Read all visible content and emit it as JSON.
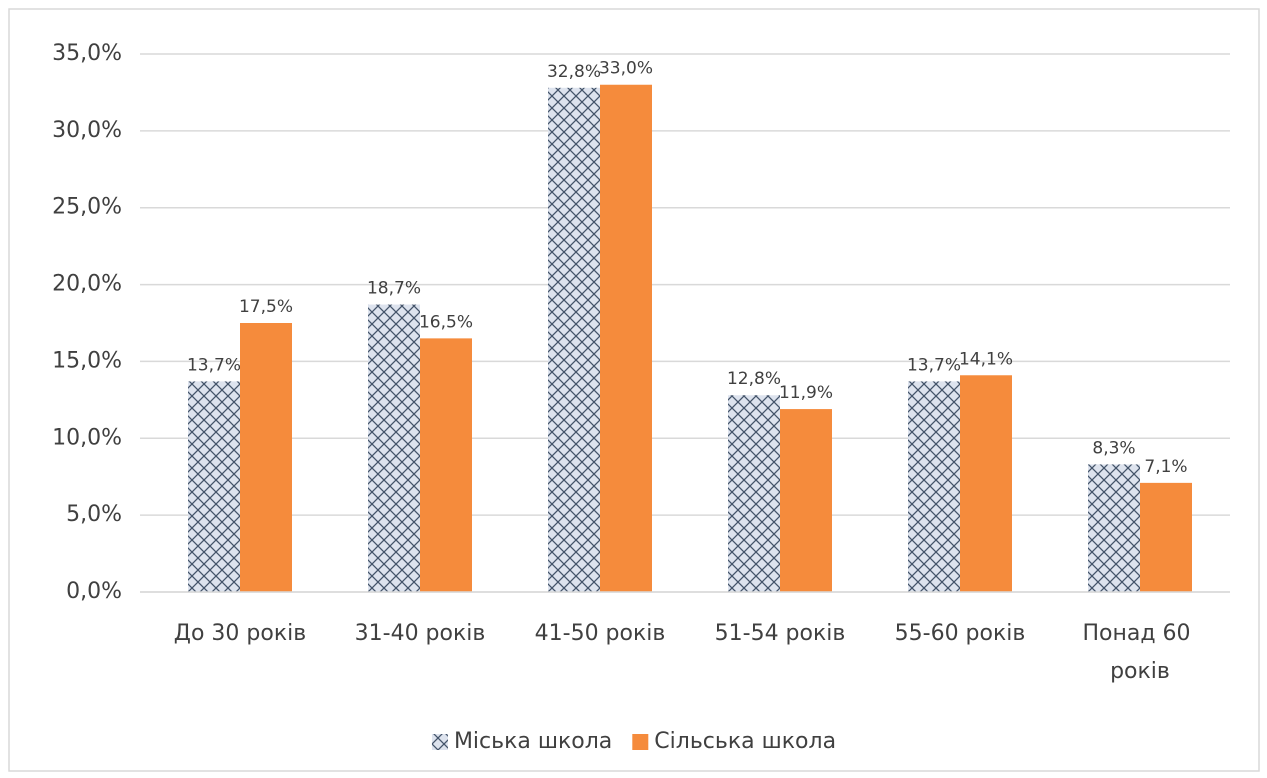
{
  "chart_data": {
    "type": "bar",
    "categories": [
      "До 30 років",
      "31-40 років",
      "41-50 років",
      "51-54 років",
      "55-60 років",
      "Понад 60 років"
    ],
    "series": [
      {
        "name": "Міська школа",
        "color": "#8497b0",
        "pattern": "crosshatch",
        "values": [
          13.7,
          18.7,
          32.8,
          12.8,
          13.7,
          8.3
        ],
        "value_labels": [
          "13,7%",
          "18,7%",
          "32,8%",
          "12,8%",
          "13,7%",
          "8,3%"
        ]
      },
      {
        "name": "Сільська школа",
        "color": "#f58b3c",
        "values": [
          17.5,
          16.5,
          33.0,
          11.9,
          14.1,
          7.1
        ],
        "value_labels": [
          "17,5%",
          "16,5%",
          "33,0%",
          "11,9%",
          "14,1%",
          "7,1%"
        ]
      }
    ],
    "ylim": [
      0,
      35
    ],
    "yticks": [
      {
        "value": 0,
        "label": "0,0%"
      },
      {
        "value": 5,
        "label": "5,0%"
      },
      {
        "value": 10,
        "label": "10,0%"
      },
      {
        "value": 15,
        "label": "15,0%"
      },
      {
        "value": 20,
        "label": "20,0%"
      },
      {
        "value": 25,
        "label": "25,0%"
      },
      {
        "value": 30,
        "label": "30,0%"
      },
      {
        "value": 35,
        "label": "35,0%"
      }
    ],
    "grid": true,
    "legend": "bottom"
  }
}
